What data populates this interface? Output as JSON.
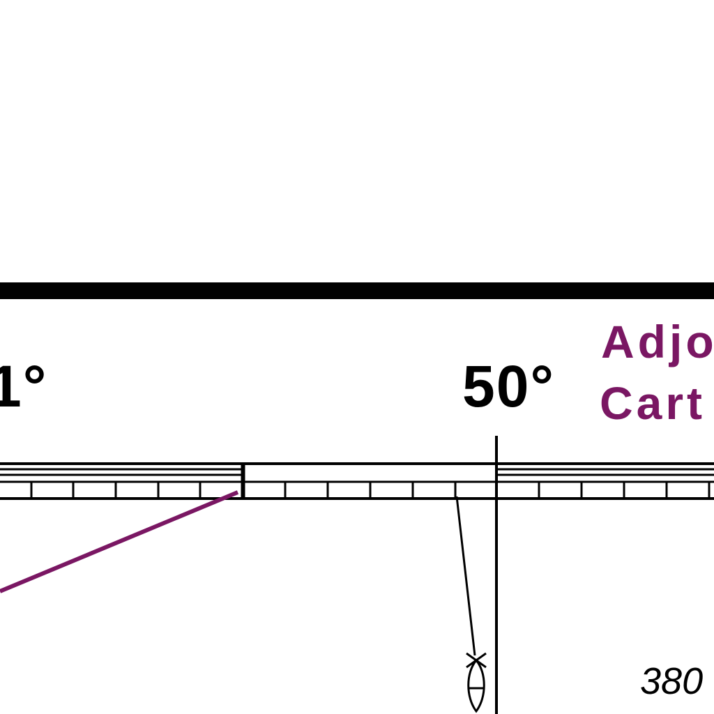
{
  "colors": {
    "ink": "#000000",
    "magenta": "#7a1763",
    "paper": "#ffffff"
  },
  "graticule": {
    "left_label": "1°",
    "right_label": "50°"
  },
  "adjoining_note": {
    "line1": "Adjo",
    "line2": "Cart"
  },
  "depth_note": "380",
  "symbols": {
    "wreck": "fish-haven-icon"
  }
}
